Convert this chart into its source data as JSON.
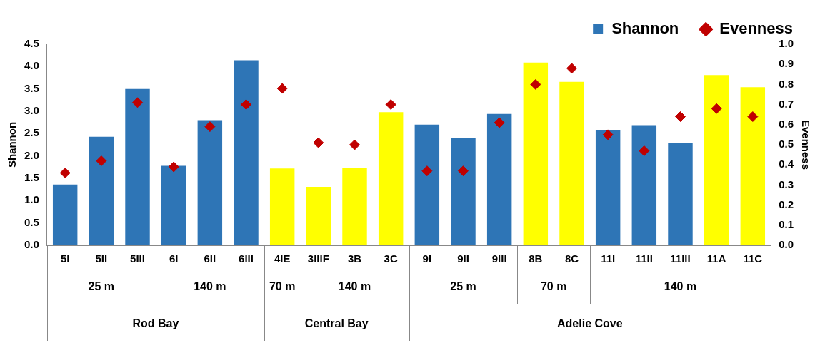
{
  "chart_data": {
    "type": "bar",
    "ylabel": "Shannon",
    "y2label": "Evenness",
    "categories": [
      "5I",
      "5II",
      "5III",
      "6I",
      "6II",
      "6III",
      "4IE",
      "3IIIF",
      "3B",
      "3C",
      "9I",
      "9II",
      "9III",
      "8B",
      "8C",
      "11I",
      "11II",
      "11III",
      "11A",
      "11C"
    ],
    "series": [
      {
        "name": "Shannon",
        "colors": [
          "#2e75b6",
          "#2e75b6",
          "#2e75b6",
          "#2e75b6",
          "#2e75b6",
          "#2e75b6",
          "#ffff00",
          "#ffff00",
          "#ffff00",
          "#ffff00",
          "#2e75b6",
          "#2e75b6",
          "#2e75b6",
          "#ffff00",
          "#ffff00",
          "#2e75b6",
          "#2e75b6",
          "#2e75b6",
          "#ffff00",
          "#ffff00"
        ],
        "color": "#2e75b6",
        "values": [
          1.36,
          2.43,
          3.5,
          1.78,
          2.8,
          4.14,
          1.72,
          1.31,
          1.73,
          2.98,
          2.7,
          2.41,
          2.94,
          4.09,
          3.66,
          2.57,
          2.69,
          2.28,
          3.81,
          3.54
        ]
      },
      {
        "name": "Evenness",
        "type": "scatter",
        "axis": "y2",
        "marker": "diamond",
        "color": "#c00000",
        "x": [
          "5I",
          "5II",
          "5III",
          "6I",
          "6II",
          "6III",
          "4IE",
          "3IIIF",
          "3B",
          "3C",
          "9I",
          "9II",
          "9III",
          "8B",
          "8C",
          "11I",
          "11II",
          "11III",
          "11A",
          "11C"
        ],
        "values": [
          0.36,
          0.42,
          0.71,
          0.39,
          0.59,
          0.7,
          0.78,
          0.51,
          0.5,
          0.7,
          0.37,
          0.37,
          0.61,
          0.8,
          0.88,
          0.55,
          0.47,
          0.64,
          0.68,
          0.64
        ]
      }
    ],
    "ylim": [
      0,
      4.5
    ],
    "yticks": [
      {
        "value": 0,
        "label": "0.0"
      },
      {
        "value": 0.5,
        "label": "0.5"
      },
      {
        "value": 1,
        "label": "1.0"
      },
      {
        "value": 1.5,
        "label": "1.5"
      },
      {
        "value": 2,
        "label": "2.0"
      },
      {
        "value": 2.5,
        "label": "2.5"
      },
      {
        "value": 3,
        "label": "3.0"
      },
      {
        "value": 3.5,
        "label": "3.5"
      },
      {
        "value": 4,
        "label": "4.0"
      },
      {
        "value": 4.5,
        "label": "4.5"
      }
    ],
    "y2lim": [
      0,
      1
    ],
    "y2ticks": [
      {
        "value": 0,
        "label": "0.0"
      },
      {
        "value": 0.1,
        "label": "0.1"
      },
      {
        "value": 0.2,
        "label": "0.2"
      },
      {
        "value": 0.3,
        "label": "0.3"
      },
      {
        "value": 0.4,
        "label": "0.4"
      },
      {
        "value": 0.5,
        "label": "0.5"
      },
      {
        "value": 0.6,
        "label": "0.6"
      },
      {
        "value": 0.7,
        "label": "0.7"
      },
      {
        "value": 0.8,
        "label": "0.8"
      },
      {
        "value": 0.9,
        "label": "0.9"
      },
      {
        "value": 1,
        "label": "1.0"
      }
    ],
    "legend": "top right",
    "grid": false,
    "annotations": [
      "25 m",
      "140 m",
      "70 m",
      "140 m",
      "25 m",
      "70 m",
      "140 m",
      "Rod Bay",
      "Central Bay",
      "Adelie Cove"
    ]
  }
}
